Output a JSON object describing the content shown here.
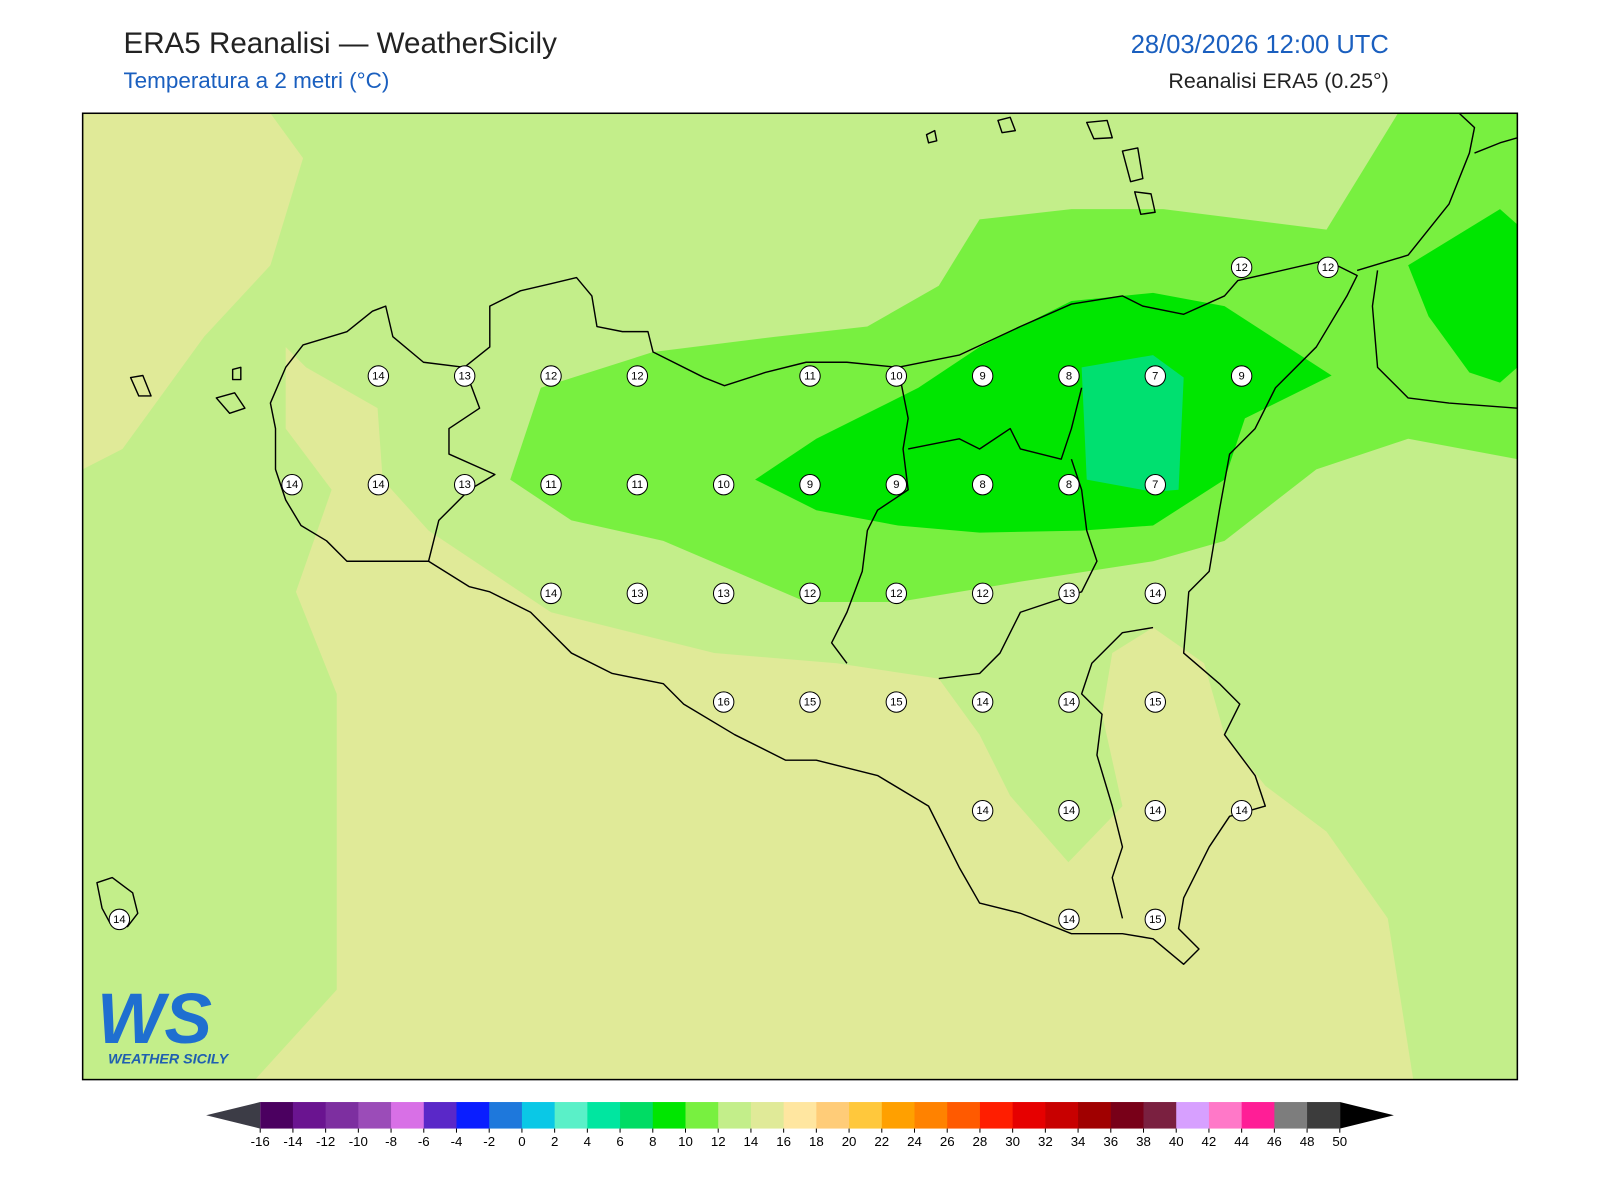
{
  "header": {
    "title": "ERA5 Reanalisi — WeatherSicily",
    "subtitle": "Temperatura a 2 metri (°C)",
    "datetime": "28/03/2026 12:00 UTC",
    "source": "Reanalisi ERA5 (0.25°)"
  },
  "stations": {
    "rows": [
      [
        null,
        null,
        null,
        null,
        null,
        null,
        null,
        null,
        null,
        null,
        null,
        null,
        null,
        12,
        12
      ],
      [
        null,
        null,
        null,
        14,
        13,
        12,
        12,
        null,
        11,
        10,
        9,
        8,
        7,
        9,
        null
      ],
      [
        null,
        null,
        14,
        14,
        13,
        11,
        11,
        10,
        9,
        9,
        8,
        8,
        7,
        null,
        null
      ],
      [
        null,
        null,
        null,
        null,
        null,
        14,
        13,
        13,
        12,
        12,
        12,
        13,
        14,
        null,
        null
      ],
      [
        null,
        null,
        null,
        null,
        null,
        null,
        null,
        16,
        15,
        15,
        14,
        14,
        15,
        null,
        null
      ],
      [
        null,
        null,
        null,
        null,
        null,
        null,
        null,
        null,
        null,
        null,
        14,
        14,
        14,
        14,
        null
      ],
      [
        14,
        null,
        null,
        null,
        null,
        null,
        null,
        null,
        null,
        null,
        null,
        14,
        15,
        null,
        null
      ]
    ]
  },
  "colorbar": {
    "ticks": [
      -16,
      -14,
      -12,
      -10,
      -8,
      -6,
      -4,
      -2,
      0,
      2,
      4,
      6,
      8,
      10,
      12,
      14,
      16,
      18,
      20,
      22,
      24,
      26,
      28,
      30,
      32,
      34,
      36,
      38,
      40,
      42,
      44,
      46,
      48,
      50
    ],
    "colors": [
      "#4b0060",
      "#6a1490",
      "#7d2fa0",
      "#9b4cb8",
      "#d870e6",
      "#5a28c8",
      "#0a1eff",
      "#1e78dc",
      "#0ac8e6",
      "#5af0c8",
      "#00e6a0",
      "#00dc64",
      "#00e600",
      "#78f040",
      "#c3ee8a",
      "#e0ea98",
      "#ffe6a0",
      "#ffcc78",
      "#ffc83c",
      "#ffa000",
      "#ff8200",
      "#ff5a00",
      "#ff1e00",
      "#e60000",
      "#c80000",
      "#a00000",
      "#780018",
      "#7a2040",
      "#d7a0ff",
      "#ff78c8",
      "#ff1e96",
      "#7d7d7d",
      "#3c3c3c"
    ],
    "under_color": "#3c3c46",
    "over_color": "#000000"
  },
  "logo": {
    "mark": "WS",
    "text": "WEATHER SICILY"
  }
}
